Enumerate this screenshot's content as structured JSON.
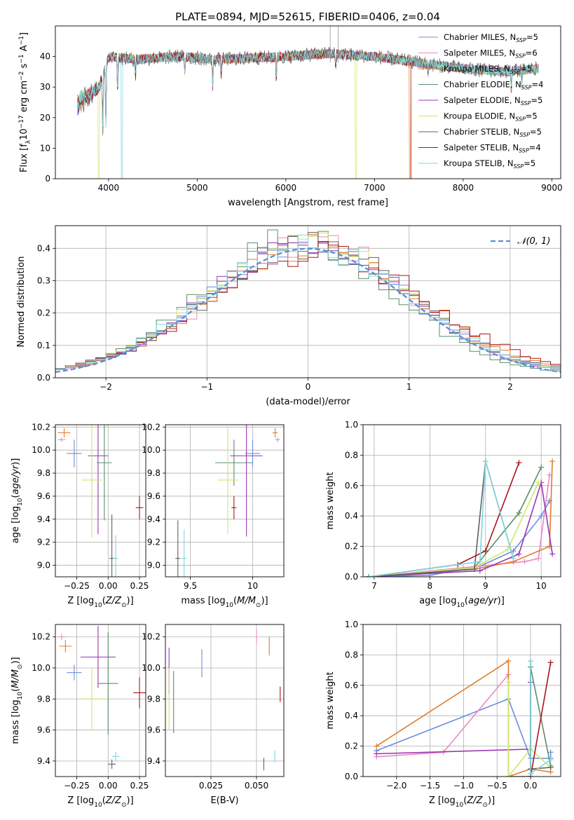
{
  "figure": {
    "title": "PLATE=0894, MJD=52615, FIBERID=0406, z=0.04"
  },
  "colors": {
    "chabrier_miles": "#6a8fdc",
    "salpeter_miles": "#e98ac3",
    "kroupa_miles": "#e07d2a",
    "chabrier_elodie": "#5a8f6a",
    "salpeter_elodie": "#9b36b4",
    "kroupa_elodie": "#cfe66a",
    "chabrier_stelib": "#606060",
    "salpeter_stelib": "#a8161c",
    "kroupa_stelib": "#7fd6e0",
    "gaussian": "#5b8ed6",
    "grid": "#b0b0b0"
  },
  "legend": {
    "spectrum": [
      {
        "pre": "Chabrier MILES, N",
        "sub": "SSP",
        "post": "=5",
        "color": "chabrier_miles"
      },
      {
        "pre": "Salpeter MILES, N",
        "sub": "SSP",
        "post": "=6",
        "color": "salpeter_miles"
      },
      {
        "pre": "Kroupa MILES, N",
        "sub": "SSP",
        "post": "=5",
        "color": "kroupa_miles"
      },
      {
        "pre": "Chabrier ELODIE, N",
        "sub": "SSP",
        "post": "=4",
        "color": "chabrier_elodie"
      },
      {
        "pre": "Salpeter ELODIE, N",
        "sub": "SSP",
        "post": "=5",
        "color": "salpeter_elodie"
      },
      {
        "pre": "Kroupa ELODIE, N",
        "sub": "SSP",
        "post": "=5",
        "color": "kroupa_elodie"
      },
      {
        "pre": "Chabrier STELIB, N",
        "sub": "SSP",
        "post": "=5",
        "color": "chabrier_stelib"
      },
      {
        "pre": "Salpeter STELIB, N",
        "sub": "SSP",
        "post": "=4",
        "color": "salpeter_stelib"
      },
      {
        "pre": "Kroupa STELIB, N",
        "sub": "SSP",
        "post": "=5",
        "color": "kroupa_stelib"
      }
    ],
    "hist": "𝒩(0, 1)"
  },
  "chart_data": [
    {
      "id": "spectrum",
      "type": "line",
      "title": "PLATE=0894, MJD=52615, FIBERID=0406, z=0.04",
      "xlabel": "wavelength [Angstrom, rest frame]",
      "ylabel": "Flux [f_λ 10^-17 erg cm^-2 s^-1 A^-1]",
      "xlim": [
        3400,
        9100
      ],
      "ylim": [
        0,
        50
      ],
      "xticks": [
        4000,
        5000,
        6000,
        7000,
        8000,
        9000
      ],
      "yticks": [
        0,
        10,
        20,
        30,
        40
      ],
      "grid": false,
      "legend_position": "top-right",
      "continuum_x": [
        3650,
        3900,
        4000,
        4300,
        4800,
        5200,
        6000,
        6500,
        7000,
        7500,
        8000,
        8500,
        8800
      ],
      "continuum_y": [
        27,
        31,
        40,
        39,
        40,
        39,
        40,
        41,
        40,
        38,
        36,
        35,
        36
      ],
      "absorption_lines": [
        {
          "x": 3934,
          "y": 14
        },
        {
          "x": 3969,
          "y": 16
        },
        {
          "x": 4102,
          "y": 28
        },
        {
          "x": 4304,
          "y": 33
        },
        {
          "x": 4861,
          "y": 34
        },
        {
          "x": 5175,
          "y": 30
        },
        {
          "x": 5270,
          "y": 34
        },
        {
          "x": 5892,
          "y": 32
        },
        {
          "x": 6563,
          "y": 36
        },
        {
          "x": 7605,
          "y": 34
        },
        {
          "x": 8542,
          "y": 28
        },
        {
          "x": 8662,
          "y": 30
        }
      ],
      "model_dropouts": [
        {
          "series": "kroupa_elodie",
          "x": 3890
        },
        {
          "series": "kroupa_stelib",
          "x": 4150
        },
        {
          "series": "kroupa_elodie",
          "x": 6790
        },
        {
          "series": "salpeter_stelib",
          "x": 7420
        },
        {
          "series": "kroupa_miles",
          "x": 7400
        }
      ],
      "emission_spikes": [
        {
          "x": 6500,
          "y": 50
        },
        {
          "x": 6590,
          "y": 50
        }
      ]
    },
    {
      "id": "residual_hist",
      "type": "histogram",
      "xlabel": "(data-model)/error",
      "ylabel": "Normed distribution",
      "xlim": [
        -2.5,
        2.5
      ],
      "ylim": [
        0,
        0.47
      ],
      "xticks": [
        -2,
        -1,
        0,
        1,
        2
      ],
      "yticks": [
        0.0,
        0.1,
        0.2,
        0.3,
        0.4
      ],
      "grid": true,
      "legend_position": "top-right",
      "bin_width": 0.1,
      "series_colors": [
        "chabrier_miles",
        "salpeter_miles",
        "kroupa_miles",
        "chabrier_elodie",
        "salpeter_elodie",
        "kroupa_elodie",
        "chabrier_stelib",
        "salpeter_stelib",
        "kroupa_stelib"
      ],
      "series_sigma": [
        0.97,
        0.98,
        1.02,
        0.95,
        0.96,
        0.99,
        1.0,
        1.07,
        1.0
      ],
      "series_mu": [
        0.0,
        0.05,
        0.08,
        -0.1,
        0.0,
        0.0,
        0.03,
        0.12,
        0.0
      ],
      "gaussian": {
        "mu": 0,
        "sigma": 1
      }
    },
    {
      "id": "age_vs_Z",
      "type": "errorbar",
      "xlabel": "Z [log10(Z/Z⊙)]",
      "ylabel": "age [log10(age/yr)]",
      "xlim": [
        -0.42,
        0.3
      ],
      "ylim": [
        8.9,
        10.22
      ],
      "xticks": [
        -0.25,
        0.0,
        0.25
      ],
      "xticklabels": [
        "−0.25",
        "0.00",
        "0.25"
      ],
      "yticks": [
        9.0,
        9.2,
        9.4,
        9.6,
        9.8,
        10.0,
        10.2
      ],
      "grid": true,
      "points": [
        {
          "color": "chabrier_miles",
          "x": -0.27,
          "y": 9.97,
          "xerr": 0.06,
          "yerr": 0.12
        },
        {
          "color": "salpeter_miles",
          "x": -0.37,
          "y": 10.09,
          "xerr": 0.03,
          "yerr": 0.02
        },
        {
          "color": "kroupa_miles",
          "x": -0.35,
          "y": 10.15,
          "xerr": 0.05,
          "yerr": 0.04
        },
        {
          "color": "chabrier_elodie",
          "x": -0.03,
          "y": 9.89,
          "xerr": 0.06,
          "yerr": 0.5
        },
        {
          "color": "salpeter_elodie",
          "x": -0.08,
          "y": 9.95,
          "xerr": 0.08,
          "yerr": 0.68
        },
        {
          "color": "kroupa_elodie",
          "x": -0.13,
          "y": 9.74,
          "xerr": 0.08,
          "yerr": 0.5
        },
        {
          "color": "chabrier_stelib",
          "x": 0.03,
          "y": 9.06,
          "xerr": 0.02,
          "yerr": 0.38
        },
        {
          "color": "salpeter_stelib",
          "x": 0.25,
          "y": 9.5,
          "xerr": 0.03,
          "yerr": 0.1
        },
        {
          "color": "kroupa_stelib",
          "x": 0.06,
          "y": 9.06,
          "xerr": 0.02,
          "yerr": 0.2
        }
      ]
    },
    {
      "id": "age_vs_mass",
      "type": "errorbar",
      "xlabel": "mass [log10(M/M⊙)]",
      "ylabel": "",
      "xlim": [
        9.3,
        10.25
      ],
      "ylim": [
        8.9,
        10.22
      ],
      "xticks": [
        9.5,
        10.0
      ],
      "yticks": [
        9.0,
        9.2,
        9.4,
        9.6,
        9.8,
        10.0,
        10.2
      ],
      "grid": true,
      "points": [
        {
          "color": "chabrier_miles",
          "x": 10.0,
          "y": 9.97,
          "xerr": 0.06,
          "yerr": 0.12
        },
        {
          "color": "salpeter_miles",
          "x": 10.2,
          "y": 10.09,
          "xerr": 0.02,
          "yerr": 0.02
        },
        {
          "color": "kroupa_miles",
          "x": 10.18,
          "y": 10.15,
          "xerr": 0.02,
          "yerr": 0.04
        },
        {
          "color": "chabrier_elodie",
          "x": 9.85,
          "y": 9.89,
          "xerr": 0.15,
          "yerr": 0.2
        },
        {
          "color": "salpeter_elodie",
          "x": 9.95,
          "y": 9.95,
          "xerr": 0.13,
          "yerr": 0.7
        },
        {
          "color": "kroupa_elodie",
          "x": 9.8,
          "y": 9.74,
          "xerr": 0.08,
          "yerr": 0.47
        },
        {
          "color": "chabrier_stelib",
          "x": 9.4,
          "y": 9.06,
          "xerr": 0.02,
          "yerr": 0.33
        },
        {
          "color": "salpeter_stelib",
          "x": 9.85,
          "y": 9.5,
          "xerr": 0.02,
          "yerr": 0.1
        },
        {
          "color": "kroupa_stelib",
          "x": 9.45,
          "y": 9.06,
          "xerr": 0.02,
          "yerr": 0.25
        }
      ]
    },
    {
      "id": "mass_weight_vs_age",
      "type": "line",
      "xlabel": "age [log10(age/yr)]",
      "ylabel": "mass weight",
      "xlim": [
        6.8,
        10.35
      ],
      "ylim": [
        0,
        1.0
      ],
      "xticks": [
        7,
        8,
        9,
        10
      ],
      "yticks": [
        0.0,
        0.2,
        0.4,
        0.6,
        0.8,
        1.0
      ],
      "grid": true,
      "series": [
        {
          "color": "chabrier_miles",
          "x": [
            6.9,
            8.0,
            8.9,
            9.5,
            10.0,
            10.15
          ],
          "y": [
            0,
            0.01,
            0.07,
            0.17,
            0.4,
            0.5
          ]
        },
        {
          "color": "salpeter_miles",
          "x": [
            6.9,
            8.6,
            9.7,
            9.95,
            10.15
          ],
          "y": [
            0,
            0.06,
            0.1,
            0.12,
            0.67
          ]
        },
        {
          "color": "kroupa_miles",
          "x": [
            6.9,
            8.8,
            9.5,
            10.15,
            10.2
          ],
          "y": [
            0,
            0.05,
            0.1,
            0.2,
            0.76
          ]
        },
        {
          "color": "chabrier_elodie",
          "x": [
            6.9,
            8.8,
            9.6,
            10.0
          ],
          "y": [
            0,
            0.06,
            0.42,
            0.72
          ]
        },
        {
          "color": "salpeter_elodie",
          "x": [
            6.9,
            8.9,
            9.6,
            10.0,
            10.2
          ],
          "y": [
            0,
            0.04,
            0.15,
            0.62,
            0.15
          ]
        },
        {
          "color": "kroupa_elodie",
          "x": [
            6.9,
            8.8,
            9.4,
            9.95
          ],
          "y": [
            0,
            0.06,
            0.18,
            0.62
          ]
        },
        {
          "color": "chabrier_stelib",
          "x": [
            6.9,
            8.8,
            9.0,
            9.5
          ],
          "y": [
            0,
            0.05,
            0.76,
            0.12
          ]
        },
        {
          "color": "salpeter_stelib",
          "x": [
            6.9,
            8.5,
            9.0,
            9.6
          ],
          "y": [
            0,
            0.08,
            0.17,
            0.75
          ]
        },
        {
          "color": "kroupa_stelib",
          "x": [
            6.9,
            8.9,
            9.0,
            9.5
          ],
          "y": [
            0,
            0.1,
            0.76,
            0.12
          ]
        }
      ]
    },
    {
      "id": "mass_vs_Z",
      "type": "errorbar",
      "xlabel": "Z [log10(Z/Z⊙)]",
      "ylabel": "mass [log10(M/M⊙)]",
      "xlim": [
        -0.42,
        0.3
      ],
      "ylim": [
        9.3,
        10.28
      ],
      "xticks": [
        -0.25,
        0.0,
        0.25
      ],
      "xticklabels": [
        "−0.25",
        "0.00",
        "0.25"
      ],
      "yticks": [
        9.4,
        9.6,
        9.8,
        10.0,
        10.2
      ],
      "grid": true,
      "points": [
        {
          "color": "chabrier_miles",
          "x": -0.27,
          "y": 9.97,
          "xerr": 0.06,
          "yerr": 0.05
        },
        {
          "color": "salpeter_miles",
          "x": -0.37,
          "y": 10.2,
          "xerr": 0.03,
          "yerr": 0.02
        },
        {
          "color": "kroupa_miles",
          "x": -0.34,
          "y": 10.14,
          "xerr": 0.05,
          "yerr": 0.04
        },
        {
          "color": "chabrier_elodie",
          "x": 0.0,
          "y": 9.9,
          "xerr": 0.08,
          "yerr": 0.33
        },
        {
          "color": "salpeter_elodie",
          "x": -0.08,
          "y": 10.07,
          "xerr": 0.14,
          "yerr": 0.2
        },
        {
          "color": "kroupa_elodie",
          "x": -0.13,
          "y": 9.8,
          "xerr": 0.1,
          "yerr": 0.2
        },
        {
          "color": "chabrier_stelib",
          "x": 0.03,
          "y": 9.38,
          "xerr": 0.03,
          "yerr": 0.03
        },
        {
          "color": "salpeter_stelib",
          "x": 0.25,
          "y": 9.84,
          "xerr": 0.05,
          "yerr": 0.1
        },
        {
          "color": "kroupa_stelib",
          "x": 0.06,
          "y": 9.43,
          "xerr": 0.03,
          "yerr": 0.03
        }
      ]
    },
    {
      "id": "mass_vs_ebv",
      "type": "errorbar",
      "xlabel": "E(B-V)",
      "ylabel": "",
      "xlim": [
        0.0,
        0.065
      ],
      "ylim": [
        9.3,
        10.28
      ],
      "xticks": [
        0.025,
        0.05
      ],
      "xticklabels": [
        "0.025",
        "0.050"
      ],
      "yticks": [
        9.4,
        9.6,
        9.8,
        10.0,
        10.2
      ],
      "grid": true,
      "points": [
        {
          "color": "chabrier_miles",
          "x": 0.02,
          "y": 10.03,
          "xerr": 0,
          "yerr": 0.09
        },
        {
          "color": "salpeter_miles",
          "x": 0.05,
          "y": 10.2,
          "xerr": 0,
          "yerr": 0.05
        },
        {
          "color": "kroupa_miles",
          "x": 0.057,
          "y": 10.14,
          "xerr": 0,
          "yerr": 0.06
        },
        {
          "color": "chabrier_elodie",
          "x": 0.0045,
          "y": 9.78,
          "xerr": 0,
          "yerr": 0.2
        },
        {
          "color": "salpeter_elodie",
          "x": 0.002,
          "y": 9.98,
          "xerr": 0,
          "yerr": 0.15
        },
        {
          "color": "kroupa_elodie",
          "x": 0.002,
          "y": 9.8,
          "xerr": 0,
          "yerr": 0.2
        },
        {
          "color": "chabrier_stelib",
          "x": 0.054,
          "y": 9.38,
          "xerr": 0,
          "yerr": 0.04
        },
        {
          "color": "salpeter_stelib",
          "x": 0.063,
          "y": 9.83,
          "xerr": 0,
          "yerr": 0.05
        },
        {
          "color": "kroupa_stelib",
          "x": 0.06,
          "y": 9.43,
          "xerr": 0,
          "yerr": 0.04
        }
      ]
    },
    {
      "id": "mass_weight_vs_Z",
      "type": "line",
      "xlabel": "Z [log10(Z/Z⊙)]",
      "ylabel": "mass weight",
      "xlim": [
        -2.5,
        0.45
      ],
      "ylim": [
        0,
        1.0
      ],
      "xticks": [
        -2.0,
        -1.5,
        -1.0,
        -0.5,
        0.0
      ],
      "xticklabels": [
        "−2.0",
        "−1.5",
        "−1.0",
        "−0.5",
        "0.0"
      ],
      "yticks": [
        0.0,
        0.2,
        0.4,
        0.6,
        0.8,
        1.0
      ],
      "grid": true,
      "series": [
        {
          "color": "chabrier_miles",
          "x": [
            -2.3,
            -0.33,
            0.0,
            0.3,
            0.3
          ],
          "y": [
            0.17,
            0.51,
            0.12,
            0.12,
            0.16
          ]
        },
        {
          "color": "salpeter_miles",
          "x": [
            -2.3,
            -1.3,
            -0.33
          ],
          "y": [
            0.13,
            0.16,
            0.67
          ]
        },
        {
          "color": "kroupa_miles",
          "x": [
            -2.3,
            -0.33,
            -0.33,
            0.0,
            0.3
          ],
          "y": [
            0.2,
            0.76,
            0.0,
            0.05,
            0.03
          ]
        },
        {
          "color": "chabrier_elodie",
          "x": [
            -0.33,
            0.0,
            0.0,
            0.3
          ],
          "y": [
            0.0,
            0.0,
            0.72,
            0.07
          ]
        },
        {
          "color": "salpeter_elodie",
          "x": [
            -2.3,
            0.0,
            0.0
          ],
          "y": [
            0.15,
            0.18,
            0.62
          ]
        },
        {
          "color": "kroupa_elodie",
          "x": [
            -0.33,
            -0.33,
            0.0,
            0.3
          ],
          "y": [
            0.62,
            0.0,
            0.18,
            0.06
          ]
        },
        {
          "color": "chabrier_stelib",
          "x": [
            0.0,
            0.0,
            0.3
          ],
          "y": [
            0.76,
            0.05,
            0.06
          ]
        },
        {
          "color": "salpeter_stelib",
          "x": [
            0.0,
            0.3
          ],
          "y": [
            0.0,
            0.75
          ]
        },
        {
          "color": "kroupa_stelib",
          "x": [
            0.0,
            0.0,
            0.3
          ],
          "y": [
            0.76,
            0.02,
            0.11
          ]
        }
      ]
    }
  ]
}
